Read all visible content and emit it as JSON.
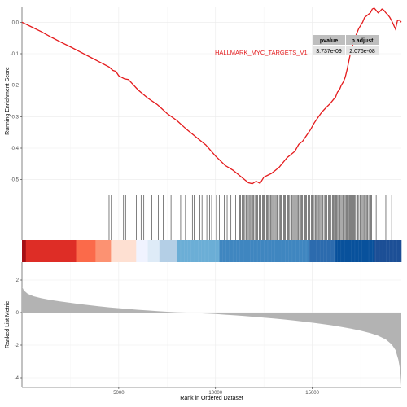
{
  "chart_data": {
    "type": "line",
    "gene_set": {
      "name": "HALLMARK_MYC_TARGETS_V1",
      "color": "#e41a1c"
    },
    "stats_table": {
      "headers": [
        "pvalue",
        "p.adjust"
      ],
      "values": [
        "3.737e-09",
        "2.076e-08"
      ]
    },
    "x_range": [
      0,
      19600
    ],
    "xlabel": "Rank in Ordered Dataset",
    "x_ticks": [
      "5000",
      "10000",
      "15000"
    ],
    "enrichment": {
      "ylabel": "Running Enrichment Score",
      "ylim": [
        -0.55,
        0.05
      ],
      "y_ticks": [
        "0.0",
        "-0.1",
        "-0.2",
        "-0.3",
        "-0.4",
        "-0.5"
      ],
      "points": [
        [
          0,
          0.0
        ],
        [
          500,
          -0.015
        ],
        [
          1000,
          -0.03
        ],
        [
          1500,
          -0.047
        ],
        [
          2000,
          -0.063
        ],
        [
          2500,
          -0.078
        ],
        [
          3000,
          -0.094
        ],
        [
          3500,
          -0.11
        ],
        [
          4000,
          -0.126
        ],
        [
          4500,
          -0.142
        ],
        [
          4700,
          -0.153
        ],
        [
          4850,
          -0.156
        ],
        [
          5000,
          -0.17
        ],
        [
          5300,
          -0.18
        ],
        [
          5500,
          -0.182
        ],
        [
          6000,
          -0.215
        ],
        [
          6500,
          -0.241
        ],
        [
          7000,
          -0.262
        ],
        [
          7500,
          -0.29
        ],
        [
          8000,
          -0.312
        ],
        [
          8500,
          -0.34
        ],
        [
          9000,
          -0.365
        ],
        [
          9500,
          -0.39
        ],
        [
          10000,
          -0.425
        ],
        [
          10500,
          -0.455
        ],
        [
          10900,
          -0.47
        ],
        [
          11100,
          -0.48
        ],
        [
          11300,
          -0.49
        ],
        [
          11500,
          -0.5
        ],
        [
          11700,
          -0.51
        ],
        [
          11900,
          -0.513
        ],
        [
          12100,
          -0.505
        ],
        [
          12300,
          -0.512
        ],
        [
          12500,
          -0.492
        ],
        [
          12700,
          -0.486
        ],
        [
          12900,
          -0.48
        ],
        [
          13100,
          -0.47
        ],
        [
          13300,
          -0.46
        ],
        [
          13500,
          -0.445
        ],
        [
          13700,
          -0.43
        ],
        [
          13900,
          -0.42
        ],
        [
          14100,
          -0.41
        ],
        [
          14300,
          -0.388
        ],
        [
          14500,
          -0.378
        ],
        [
          14700,
          -0.36
        ],
        [
          14900,
          -0.342
        ],
        [
          15100,
          -0.32
        ],
        [
          15300,
          -0.302
        ],
        [
          15500,
          -0.285
        ],
        [
          15700,
          -0.272
        ],
        [
          15900,
          -0.26
        ],
        [
          16100,
          -0.245
        ],
        [
          16200,
          -0.238
        ],
        [
          16300,
          -0.222
        ],
        [
          16400,
          -0.215
        ],
        [
          16500,
          -0.2
        ],
        [
          16600,
          -0.19
        ],
        [
          16700,
          -0.175
        ],
        [
          16800,
          -0.15
        ],
        [
          16900,
          -0.12
        ],
        [
          17000,
          -0.09
        ],
        [
          17100,
          -0.07
        ],
        [
          17200,
          -0.05
        ],
        [
          17300,
          -0.035
        ],
        [
          17400,
          -0.02
        ],
        [
          17500,
          -0.01
        ],
        [
          17600,
          0.0
        ],
        [
          17700,
          0.015
        ],
        [
          17800,
          0.02
        ],
        [
          17900,
          0.025
        ],
        [
          18000,
          0.03
        ],
        [
          18100,
          0.042
        ],
        [
          18200,
          0.045
        ],
        [
          18300,
          0.038
        ],
        [
          18400,
          0.03
        ],
        [
          18500,
          0.035
        ],
        [
          18600,
          0.042
        ],
        [
          18700,
          0.038
        ],
        [
          18800,
          0.03
        ],
        [
          18900,
          0.024
        ],
        [
          19000,
          0.016
        ],
        [
          19100,
          0.005
        ],
        [
          19200,
          -0.008
        ],
        [
          19300,
          -0.022
        ],
        [
          19400,
          0.005
        ],
        [
          19500,
          0.007
        ],
        [
          19600,
          0.0
        ]
      ]
    },
    "hits": {
      "sparse": [
        4500,
        4620,
        4850,
        5250,
        5350,
        5900,
        6150,
        6300,
        6700,
        7050,
        7300,
        7700,
        7800,
        8200,
        8450,
        8800,
        8900,
        9200,
        9300,
        9550,
        9700,
        9800,
        10050,
        10200,
        10450,
        10600,
        10800,
        11050,
        18300,
        18800,
        19100
      ],
      "dense_start": 11200,
      "dense_end": 18100,
      "dense_step": 55
    },
    "rank_colorbar": [
      {
        "from": 0,
        "to": 200,
        "color": "#a50f15"
      },
      {
        "from": 200,
        "to": 2800,
        "color": "#de2d26"
      },
      {
        "from": 2800,
        "to": 3800,
        "color": "#fb6a4a"
      },
      {
        "from": 3800,
        "to": 4600,
        "color": "#fc9272"
      },
      {
        "from": 4600,
        "to": 5900,
        "color": "#fee0d2"
      },
      {
        "from": 5900,
        "to": 6500,
        "color": "#f0f3ff"
      },
      {
        "from": 6500,
        "to": 7100,
        "color": "#deebf7"
      },
      {
        "from": 7100,
        "to": 8000,
        "color": "#b4cfe6"
      },
      {
        "from": 8000,
        "to": 10200,
        "color": "#6baed6"
      },
      {
        "from": 10200,
        "to": 14800,
        "color": "#3f86c0"
      },
      {
        "from": 14800,
        "to": 16200,
        "color": "#2c6bae"
      },
      {
        "from": 16200,
        "to": 18200,
        "color": "#08519c"
      },
      {
        "from": 18200,
        "to": 19600,
        "color": "#1c4f96"
      }
    ],
    "ranked_metric": {
      "ylabel": "Ranked List Metric",
      "ylim": [
        -4.6,
        3.1
      ],
      "y_ticks": [
        [
          "2",
          2
        ],
        [
          "0",
          0
        ],
        [
          "-2",
          -2
        ],
        [
          "-4",
          -4
        ]
      ],
      "fill_color": "#b3b3b3",
      "points": [
        [
          0,
          1.6
        ],
        [
          100,
          1.35
        ],
        [
          300,
          1.15
        ],
        [
          600,
          1.0
        ],
        [
          1000,
          0.88
        ],
        [
          1500,
          0.77
        ],
        [
          2000,
          0.68
        ],
        [
          2500,
          0.6
        ],
        [
          3000,
          0.52
        ],
        [
          3500,
          0.45
        ],
        [
          4000,
          0.38
        ],
        [
          4500,
          0.32
        ],
        [
          5000,
          0.27
        ],
        [
          5500,
          0.22
        ],
        [
          6000,
          0.17
        ],
        [
          6500,
          0.13
        ],
        [
          7000,
          0.09
        ],
        [
          7500,
          0.05
        ],
        [
          8000,
          0.02
        ],
        [
          8500,
          0.0
        ],
        [
          9000,
          -0.03
        ],
        [
          9500,
          -0.06
        ],
        [
          10000,
          -0.09
        ],
        [
          10500,
          -0.13
        ],
        [
          11000,
          -0.17
        ],
        [
          11500,
          -0.21
        ],
        [
          12000,
          -0.26
        ],
        [
          12500,
          -0.31
        ],
        [
          13000,
          -0.36
        ],
        [
          13500,
          -0.42
        ],
        [
          14000,
          -0.48
        ],
        [
          14500,
          -0.55
        ],
        [
          15000,
          -0.62
        ],
        [
          15500,
          -0.7
        ],
        [
          16000,
          -0.78
        ],
        [
          16500,
          -0.88
        ],
        [
          17000,
          -0.99
        ],
        [
          17500,
          -1.11
        ],
        [
          18000,
          -1.26
        ],
        [
          18400,
          -1.42
        ],
        [
          18800,
          -1.65
        ],
        [
          19100,
          -1.95
        ],
        [
          19300,
          -2.3
        ],
        [
          19450,
          -2.9
        ],
        [
          19550,
          -3.6
        ],
        [
          19600,
          -4.5
        ]
      ]
    }
  }
}
